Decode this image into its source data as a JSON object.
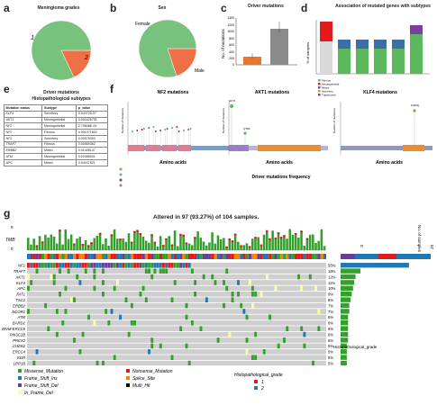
{
  "panels": {
    "a": {
      "letter": "a",
      "title": "Meningioma grades",
      "labels": [
        "1",
        "2"
      ],
      "slices": [
        0.82,
        0.18
      ],
      "colors": [
        "#78c27e",
        "#ef6f47"
      ]
    },
    "b": {
      "letter": "b",
      "title": "Sex",
      "labels": [
        "Female",
        "Male"
      ],
      "slices": [
        0.8,
        0.2
      ],
      "colors": [
        "#78c27e",
        "#ef6f47"
      ]
    },
    "c": {
      "letter": "c",
      "title": "Driver mutations",
      "ylabel": "No. of mutations",
      "yticks": [
        "0",
        "200",
        "400",
        "600",
        "800",
        "1000",
        "1200",
        "1400"
      ]
    },
    "d": {
      "letter": "d",
      "title": "Association of mutated genes with subtypes",
      "ylabel": "% of samples",
      "legend": [
        "Fibrous",
        "Meningothelial",
        "Mixed",
        "Secretory",
        "Transitional"
      ]
    },
    "e": {
      "letter": "e",
      "title_line1": "Driver mutations",
      "title_line2": "Histopathological subtypes",
      "columns": [
        "Mutation status",
        "Subtype",
        "p_value"
      ],
      "rows": [
        [
          "KLF4",
          "Secretory",
          "0.044725.07"
        ],
        [
          "AKT1",
          "Meningothelial",
          "0.001626751"
        ],
        [
          "NF2",
          "Meningothelial",
          "2.79608E-09"
        ],
        [
          "NF2",
          "Fibrous",
          "0.001071602"
        ],
        [
          "NF2",
          "Secretory",
          "0.00575393"
        ],
        [
          "TRAF7",
          "Fibrous",
          "0.00569362"
        ],
        [
          "ERBB2",
          "Mixed",
          "0.01408147"
        ],
        [
          "ATM",
          "Meningothelial",
          "0.02458931"
        ],
        [
          "APC",
          "Mixed",
          "0.04047821"
        ]
      ]
    },
    "f": {
      "letter": "f",
      "titles": [
        "NF2 mutations",
        "AKT1 mutations",
        "KLF4 mutations"
      ],
      "xlabel": "Amino acids",
      "ylabel": "Number of mutations",
      "subtitle": "Driver mutations frequency",
      "labels": [
        "E17K",
        "Q79K",
        "K409Q"
      ]
    },
    "g": {
      "letter": "g",
      "title": "Altered in 97 (93.27%) of 104 samples.",
      "tmb_label": "TMB",
      "tmb_ticks": [
        "8",
        "0"
      ],
      "right_axis": [
        "0",
        "57"
      ],
      "right_label": "No. of samples",
      "hist_label": "Histopathological_grade"
    }
  },
  "chart_data": {
    "type": "heatmap",
    "title": "Altered in 97 (93.27%) of 104 samples.",
    "genes": [
      "NF2",
      "TRAF7",
      "AKT1",
      "KLF4",
      "APC",
      "FAT1",
      "TSC2",
      "ERBB2",
      "NCOR1",
      "ATM",
      "BARD1",
      "BIVM-ERCC5",
      "PIK3C2B",
      "PREX2",
      "CHEK2",
      "ERCC4",
      "KDR",
      "LRP1B",
      "MET",
      "AXIN1"
    ],
    "percent": [
      "55%",
      "16%",
      "12%",
      "11%",
      "10%",
      "9%",
      "8%",
      "7%",
      "7%",
      "6%",
      "6%",
      "6%",
      "6%",
      "6%",
      "5%",
      "5%",
      "5%",
      "5%",
      "5%",
      "4%"
    ],
    "fraction": [
      0.55,
      0.16,
      0.12,
      0.11,
      0.1,
      0.09,
      0.08,
      0.07,
      0.07,
      0.06,
      0.06,
      0.06,
      0.06,
      0.06,
      0.05,
      0.05,
      0.05,
      0.05,
      0.05,
      0.04
    ]
  },
  "legend": {
    "items": [
      "Missense_Mutation",
      "Frame_Shift_Ins",
      "Frame_Shift_Del",
      "In_Frame_Del",
      "Nonsense_Mutation",
      "Splice_Site",
      "Multi_Hit"
    ],
    "colors": [
      "#33a02c",
      "#1f78b4",
      "#6a3d9a",
      "#ffff99",
      "#e31a1c",
      "#ff7f00",
      "#000000"
    ],
    "grade_title": "Histopathological_grade",
    "grade_items": [
      "1",
      "2"
    ],
    "grade_colors": [
      "#e31a1c",
      "#1f78b4"
    ]
  }
}
